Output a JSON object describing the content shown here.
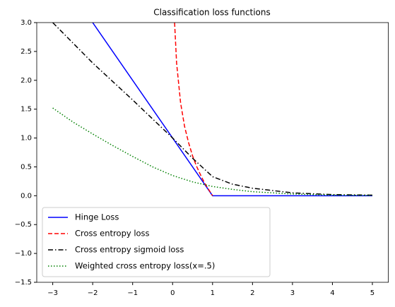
{
  "chart_data": {
    "type": "line",
    "title": "Classification loss functions",
    "xlim": [
      -3.4,
      5.4
    ],
    "ylim": [
      -1.5,
      3.0
    ],
    "xticks": [
      {
        "value": -3,
        "label": "−3"
      },
      {
        "value": -2,
        "label": "−2"
      },
      {
        "value": -1,
        "label": "−1"
      },
      0,
      1,
      2,
      3,
      4,
      5
    ],
    "yticks": [
      {
        "value": -1.5,
        "label": "−1.5"
      },
      {
        "value": -1.0,
        "label": "−1.0"
      },
      {
        "value": -0.5,
        "label": "−0.5"
      },
      {
        "value": 0,
        "label": "0.0"
      },
      {
        "value": 0.5,
        "label": "0.5"
      },
      {
        "value": 1.0,
        "label": "1.0"
      },
      {
        "value": 1.5,
        "label": "1.5"
      },
      {
        "value": 2.0,
        "label": "2.0"
      },
      {
        "value": 2.5,
        "label": "2.5"
      },
      {
        "value": 3.0,
        "label": "3.0"
      }
    ],
    "legend": "lower left",
    "series": [
      {
        "name": "Hinge Loss",
        "color": "#0000ff",
        "style": "solid",
        "x": [
          -3,
          1,
          5
        ],
        "values": [
          4,
          0,
          0
        ]
      },
      {
        "name": "Cross entropy loss",
        "color": "#ff0000",
        "style": "dashed",
        "x": [
          0.05,
          0.1,
          0.2,
          0.3,
          0.4,
          0.5,
          0.6,
          0.7,
          0.8,
          0.9,
          1.0
        ],
        "values": [
          3.0,
          2.3,
          1.61,
          1.2,
          0.92,
          0.69,
          0.51,
          0.36,
          0.22,
          0.11,
          0
        ]
      },
      {
        "name": "Cross entropy sigmoid loss",
        "color": "#000000",
        "style": "dashdot",
        "x": [
          -3,
          -2.5,
          -2,
          -1.5,
          -1,
          -0.5,
          0,
          0.5,
          1,
          1.5,
          2,
          3,
          4,
          5
        ],
        "values": [
          3.0,
          2.65,
          2.3,
          1.98,
          1.66,
          1.33,
          1.0,
          0.65,
          0.33,
          0.2,
          0.13,
          0.05,
          0.02,
          0.01
        ]
      },
      {
        "name": "Weighted cross entropy loss(x=.5)",
        "color": "#008000",
        "style": "dotted",
        "x": [
          -3,
          -2.5,
          -2,
          -1.5,
          -1,
          -0.5,
          0,
          0.5,
          1,
          1.5,
          2,
          3,
          4,
          5
        ],
        "values": [
          1.52,
          1.28,
          1.07,
          0.87,
          0.68,
          0.5,
          0.35,
          0.24,
          0.16,
          0.11,
          0.07,
          0.03,
          0.01,
          0.005
        ]
      }
    ]
  }
}
